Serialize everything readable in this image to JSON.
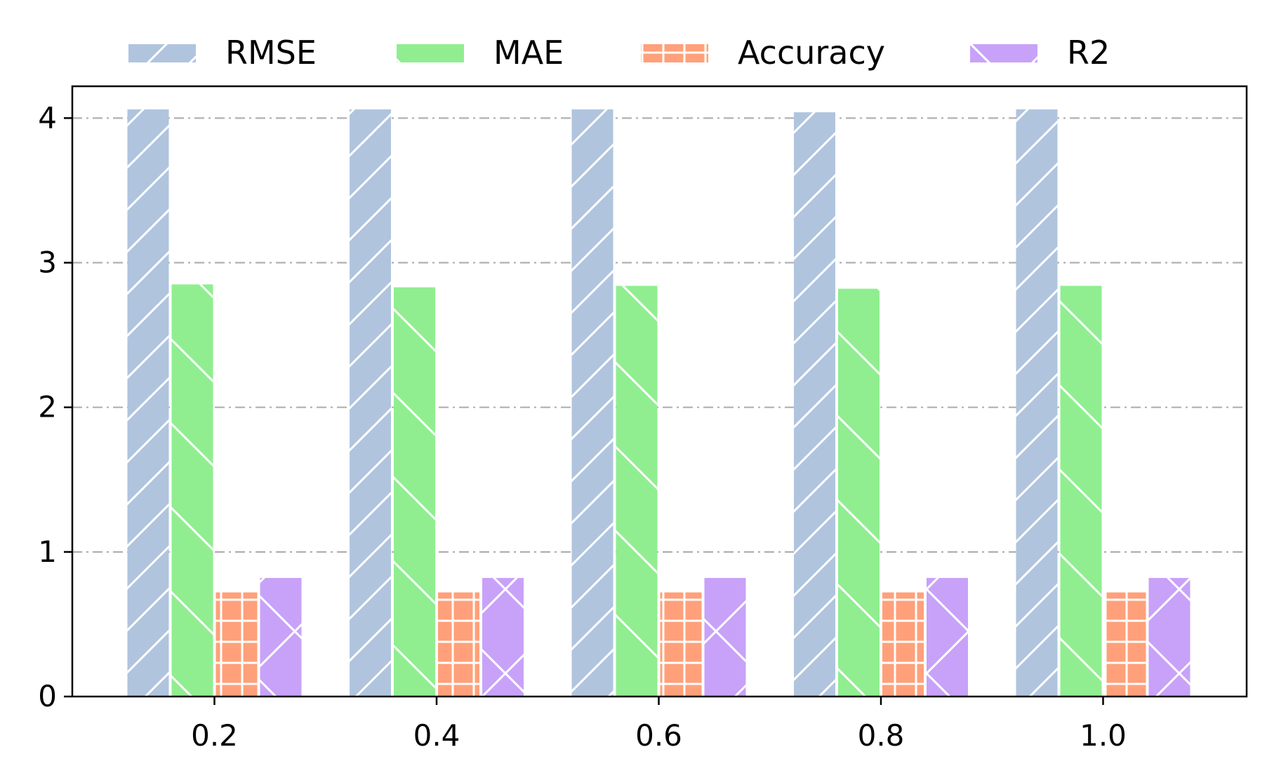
{
  "chart_data": {
    "type": "bar",
    "categories": [
      "0.2",
      "0.4",
      "0.6",
      "0.8",
      "1.0"
    ],
    "series": [
      {
        "name": "RMSE",
        "values": [
          4.06,
          4.06,
          4.06,
          4.04,
          4.06
        ],
        "color": "#b0c4de",
        "hatch": "forward-diagonal"
      },
      {
        "name": "MAE",
        "values": [
          2.85,
          2.83,
          2.84,
          2.82,
          2.84
        ],
        "color": "#90ee90",
        "hatch": "back-diagonal"
      },
      {
        "name": "Accuracy",
        "values": [
          0.72,
          0.72,
          0.72,
          0.72,
          0.72
        ],
        "color": "#ffa07a",
        "hatch": "grid"
      },
      {
        "name": "R2",
        "values": [
          0.82,
          0.82,
          0.82,
          0.82,
          0.82
        ],
        "color": "#c8a2f8",
        "hatch": "cross-diagonal"
      }
    ],
    "yticks": [
      "0",
      "1",
      "2",
      "3",
      "4"
    ],
    "ylim": [
      0,
      4.22
    ],
    "xlabel": "",
    "ylabel": "",
    "title": "",
    "grid": "horizontal dash-dot",
    "legend_position": "top-center"
  }
}
